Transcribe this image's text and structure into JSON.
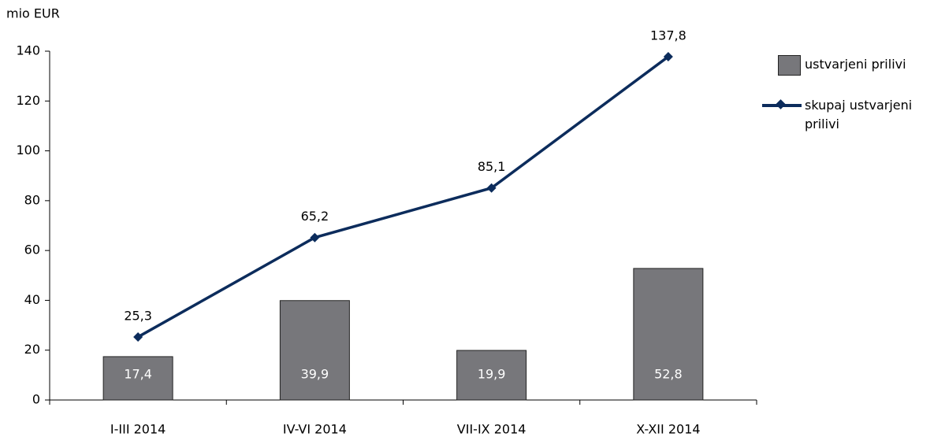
{
  "chart_data": {
    "type": "combo",
    "y_label": "mio EUR",
    "categories": [
      "I-III 2014",
      "IV-VI 2014",
      "VII-IX 2014",
      "X-XII 2014"
    ],
    "series": [
      {
        "name": "ustvarjeni prilivi",
        "type": "bar",
        "color": "#77777b",
        "values": [
          17.4,
          39.9,
          19.9,
          52.8
        ],
        "value_labels": [
          "17,4",
          "39,9",
          "19,9",
          "52,8"
        ]
      },
      {
        "name": "skupaj ustvarjeni prilivi",
        "type": "line",
        "color": "#0c2c5c",
        "values": [
          25.3,
          65.2,
          85.1,
          137.8
        ],
        "value_labels": [
          "25,3",
          "65,2",
          "85,1",
          "137,8"
        ]
      }
    ],
    "ylim": [
      0,
      140
    ],
    "yticks": [
      0,
      20,
      40,
      60,
      80,
      100,
      120,
      140
    ],
    "legend": "right"
  }
}
